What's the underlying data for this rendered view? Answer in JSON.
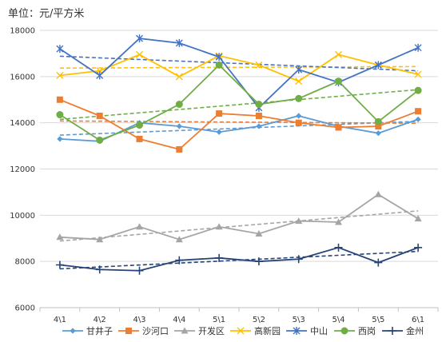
{
  "chart_data": {
    "type": "line",
    "unit_label": "单位：元/平方米",
    "categories": [
      "4\\1",
      "4\\2",
      "4\\3",
      "4\\4",
      "5\\1",
      "5\\2",
      "5\\3",
      "5\\4",
      "5\\5",
      "6\\1"
    ],
    "ylim": [
      6000,
      18000
    ],
    "yticks": [
      6000,
      8000,
      10000,
      12000,
      14000,
      16000,
      18000
    ],
    "grid": true,
    "trendlines": true,
    "legend_position": "bottom",
    "series": [
      {
        "name": "甘井子",
        "color": "#5b9bd5",
        "marker": "diamond",
        "values": [
          13300,
          13200,
          14000,
          13850,
          13600,
          13850,
          14300,
          13850,
          13550,
          14150
        ]
      },
      {
        "name": "沙河口",
        "color": "#ed7d31",
        "marker": "square",
        "values": [
          15000,
          14300,
          13300,
          12850,
          14400,
          14300,
          14000,
          13800,
          13850,
          14500
        ]
      },
      {
        "name": "开发区",
        "color": "#a5a5a5",
        "marker": "triangle",
        "values": [
          9050,
          8950,
          9500,
          8950,
          9500,
          9200,
          9750,
          9700,
          10900,
          9850
        ]
      },
      {
        "name": "高新园",
        "color": "#ffc000",
        "marker": "x",
        "values": [
          16050,
          16250,
          16950,
          16000,
          16900,
          16500,
          15800,
          16950,
          16500,
          16100
        ]
      },
      {
        "name": "中山",
        "color": "#4472c4",
        "marker": "star",
        "values": [
          17200,
          16050,
          17650,
          17450,
          16850,
          14650,
          16300,
          15750,
          16500,
          17250
        ]
      },
      {
        "name": "西岗",
        "color": "#70ad47",
        "marker": "circle",
        "values": [
          14350,
          13250,
          13900,
          14800,
          16500,
          14800,
          15050,
          15800,
          14050,
          15400
        ]
      },
      {
        "name": "金州",
        "color": "#264478",
        "marker": "plus",
        "values": [
          7850,
          7650,
          7600,
          8050,
          8150,
          8000,
          8100,
          8600,
          7950,
          8600
        ]
      }
    ]
  }
}
